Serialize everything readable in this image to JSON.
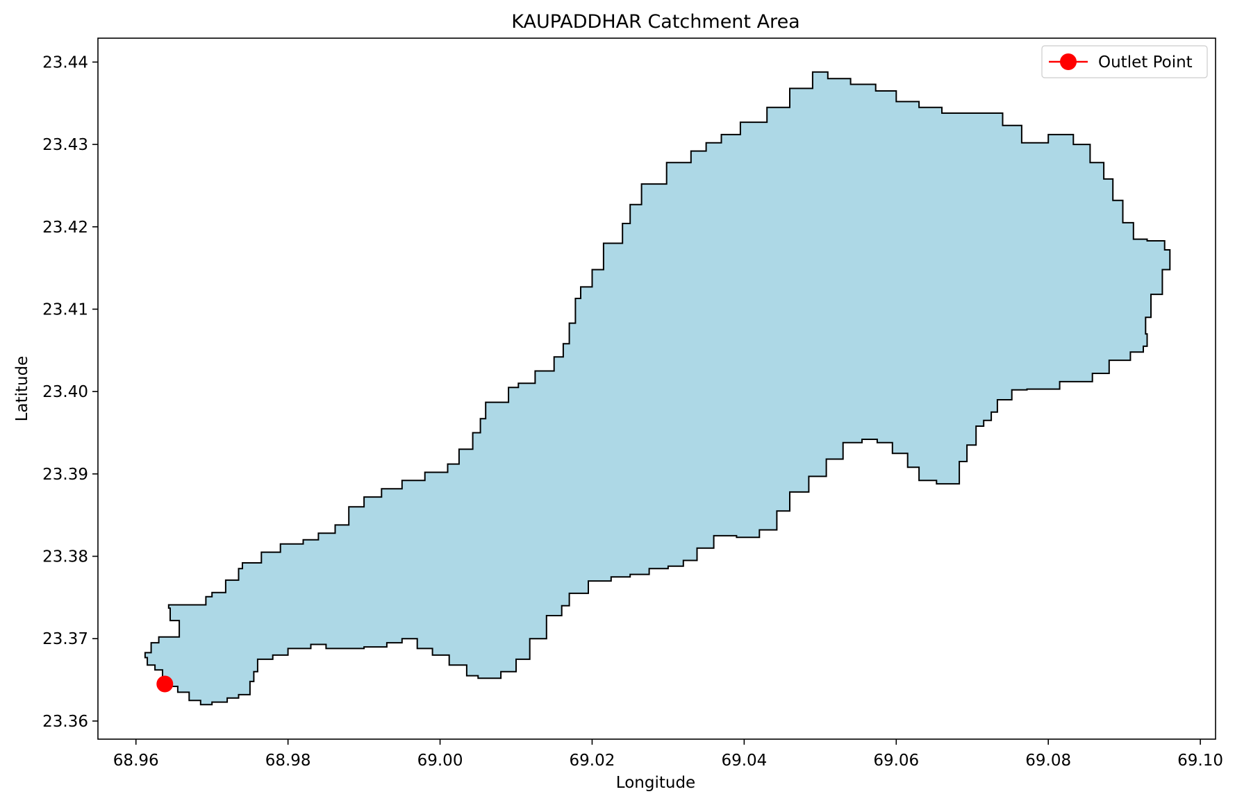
{
  "chart_data": {
    "type": "map",
    "title": "KAUPADDHAR Catchment Area",
    "xlabel": "Longitude",
    "ylabel": "Latitude",
    "xlim": [
      68.955,
      69.102
    ],
    "ylim": [
      23.3578,
      23.4429
    ],
    "xticks": [
      68.96,
      68.98,
      69.0,
      69.02,
      69.04,
      69.06,
      69.08,
      69.1
    ],
    "xtick_labels": [
      "68.96",
      "68.98",
      "69.00",
      "69.02",
      "69.04",
      "69.06",
      "69.08",
      "69.10"
    ],
    "yticks": [
      23.36,
      23.37,
      23.38,
      23.39,
      23.4,
      23.41,
      23.42,
      23.43,
      23.44
    ],
    "ytick_labels": [
      "23.36",
      "23.37",
      "23.38",
      "23.39",
      "23.40",
      "23.41",
      "23.42",
      "23.43",
      "23.44"
    ],
    "grid": false,
    "legend": {
      "position": "top-right",
      "entries": [
        "Outlet Point"
      ]
    },
    "colors": {
      "catchment_fill": "#add8e6",
      "catchment_edge": "#000000",
      "outlet": "#ff0000"
    },
    "catchment_boundary": [
      [
        68.9635,
        23.3647
      ],
      [
        68.9625,
        23.3662
      ],
      [
        68.9615,
        23.3668
      ],
      [
        68.9612,
        23.3677
      ],
      [
        68.962,
        23.3683
      ],
      [
        68.963,
        23.3695
      ],
      [
        68.9645,
        23.3702
      ],
      [
        68.9657,
        23.3702
      ],
      [
        68.9645,
        23.3722
      ],
      [
        68.9643,
        23.3737
      ],
      [
        68.9665,
        23.3741
      ],
      [
        68.9692,
        23.3741
      ],
      [
        68.97,
        23.3751
      ],
      [
        68.9718,
        23.3756
      ],
      [
        68.9735,
        23.3771
      ],
      [
        68.974,
        23.3785
      ],
      [
        68.9765,
        23.3792
      ],
      [
        68.979,
        23.3805
      ],
      [
        68.982,
        23.3815
      ],
      [
        68.984,
        23.382
      ],
      [
        68.9862,
        23.3828
      ],
      [
        68.988,
        23.3838
      ],
      [
        68.99,
        23.386
      ],
      [
        68.9923,
        23.3872
      ],
      [
        68.995,
        23.3882
      ],
      [
        68.998,
        23.3892
      ],
      [
        69.001,
        23.3902
      ],
      [
        69.0025,
        23.3912
      ],
      [
        69.0043,
        23.393
      ],
      [
        69.0053,
        23.395
      ],
      [
        69.006,
        23.3967
      ],
      [
        69.009,
        23.3987
      ],
      [
        69.0103,
        23.4005
      ],
      [
        69.0125,
        23.401
      ],
      [
        69.015,
        23.4025
      ],
      [
        69.0162,
        23.4042
      ],
      [
        69.017,
        23.4058
      ],
      [
        69.0178,
        23.4083
      ],
      [
        69.0185,
        23.4113
      ],
      [
        69.02,
        23.4127
      ],
      [
        69.0215,
        23.4148
      ],
      [
        69.024,
        23.418
      ],
      [
        69.025,
        23.4204
      ],
      [
        69.0265,
        23.4227
      ],
      [
        69.0298,
        23.4252
      ],
      [
        69.033,
        23.4278
      ],
      [
        69.035,
        23.4292
      ],
      [
        69.037,
        23.4302
      ],
      [
        69.0395,
        23.4312
      ],
      [
        69.043,
        23.4327
      ],
      [
        69.046,
        23.4345
      ],
      [
        69.049,
        23.4368
      ],
      [
        69.051,
        23.4388
      ],
      [
        69.054,
        23.438
      ],
      [
        69.0573,
        23.4373
      ],
      [
        69.06,
        23.4365
      ],
      [
        69.063,
        23.4352
      ],
      [
        69.066,
        23.4345
      ],
      [
        69.07,
        23.4338
      ],
      [
        69.074,
        23.4338
      ],
      [
        69.0765,
        23.4323
      ],
      [
        69.08,
        23.4302
      ],
      [
        69.0833,
        23.4312
      ],
      [
        69.0855,
        23.43
      ],
      [
        69.0873,
        23.4278
      ],
      [
        69.0885,
        23.4258
      ],
      [
        69.0898,
        23.4232
      ],
      [
        69.0912,
        23.4205
      ],
      [
        69.093,
        23.4185
      ],
      [
        69.0953,
        23.4183
      ],
      [
        69.096,
        23.4172
      ],
      [
        69.095,
        23.4148
      ],
      [
        69.0935,
        23.4118
      ],
      [
        69.0928,
        23.409
      ],
      [
        69.093,
        23.407
      ],
      [
        69.0925,
        23.4055
      ],
      [
        69.0908,
        23.4048
      ],
      [
        69.088,
        23.4038
      ],
      [
        69.0858,
        23.4022
      ],
      [
        69.0833,
        23.4012
      ],
      [
        69.0815,
        23.4012
      ],
      [
        69.08,
        23.4003
      ],
      [
        69.0785,
        23.4003
      ],
      [
        69.0772,
        23.4003
      ],
      [
        69.0752,
        23.4002
      ],
      [
        69.0733,
        23.399
      ],
      [
        69.0725,
        23.3975
      ],
      [
        69.0715,
        23.3965
      ],
      [
        69.0705,
        23.3958
      ],
      [
        69.0693,
        23.3935
      ],
      [
        69.0683,
        23.3915
      ],
      [
        69.067,
        23.3888
      ],
      [
        69.0653,
        23.3888
      ],
      [
        69.063,
        23.3892
      ],
      [
        69.0615,
        23.3908
      ],
      [
        69.0595,
        23.3925
      ],
      [
        69.0575,
        23.3938
      ],
      [
        69.0555,
        23.3942
      ],
      [
        69.053,
        23.3938
      ],
      [
        69.0508,
        23.3918
      ],
      [
        69.0485,
        23.3897
      ],
      [
        69.046,
        23.3878
      ],
      [
        69.0443,
        23.3855
      ],
      [
        69.042,
        23.3832
      ],
      [
        69.039,
        23.3823
      ],
      [
        69.036,
        23.3825
      ],
      [
        69.0338,
        23.381
      ],
      [
        69.032,
        23.3795
      ],
      [
        69.03,
        23.3788
      ],
      [
        69.0275,
        23.3785
      ],
      [
        69.025,
        23.3778
      ],
      [
        69.0225,
        23.3775
      ],
      [
        69.0195,
        23.377
      ],
      [
        69.017,
        23.3755
      ],
      [
        69.016,
        23.374
      ],
      [
        69.014,
        23.3728
      ],
      [
        69.0118,
        23.37
      ],
      [
        69.01,
        23.3675
      ],
      [
        69.008,
        23.366
      ],
      [
        69.005,
        23.3652
      ],
      [
        69.0035,
        23.3655
      ],
      [
        69.0012,
        23.3668
      ],
      [
        68.999,
        23.368
      ],
      [
        68.997,
        23.3688
      ],
      [
        68.995,
        23.37
      ],
      [
        68.993,
        23.3695
      ],
      [
        68.99,
        23.369
      ],
      [
        68.987,
        23.3688
      ],
      [
        68.985,
        23.3688
      ],
      [
        68.983,
        23.3693
      ],
      [
        68.98,
        23.3688
      ],
      [
        68.978,
        23.368
      ],
      [
        68.976,
        23.3675
      ],
      [
        68.9755,
        23.366
      ],
      [
        68.975,
        23.3648
      ],
      [
        68.9735,
        23.3632
      ],
      [
        68.972,
        23.3628
      ],
      [
        68.97,
        23.3623
      ],
      [
        68.9685,
        23.362
      ],
      [
        68.967,
        23.3625
      ],
      [
        68.9655,
        23.3635
      ],
      [
        68.9645,
        23.3642
      ],
      [
        68.9635,
        23.3647
      ]
    ],
    "outlet_point": {
      "name": "Outlet Point",
      "lon": 68.9638,
      "lat": 23.3645
    }
  }
}
